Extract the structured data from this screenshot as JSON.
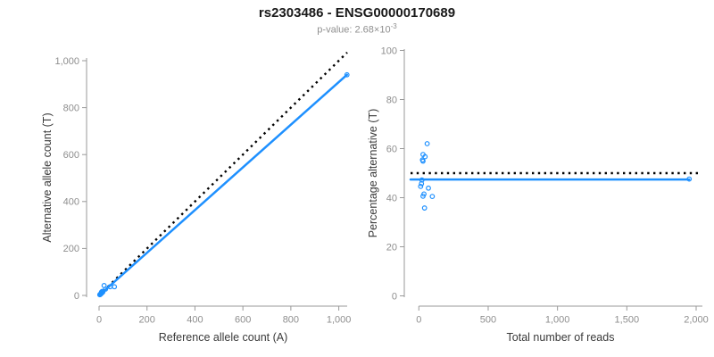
{
  "header": {
    "title": "rs2303486 - ENSG00000170689",
    "p_value_text": "p-value: 2.68×10",
    "p_value_exponent": "-3"
  },
  "colors": {
    "accent_blue": "#1E90FF",
    "reference_line": "#000000",
    "axis": "#999999",
    "tick_label": "#8e8e8e",
    "axis_title": "#3a3a3a",
    "title": "#1a1a1a",
    "subtitle": "#8f8f8f",
    "background": "#ffffff"
  },
  "chart_data": [
    {
      "type": "scatter",
      "title": "",
      "xlabel": "Reference allele count (A)",
      "ylabel": "Alternative allele count (T)",
      "xlim": [
        0,
        1035
      ],
      "ylim": [
        0,
        1040
      ],
      "xticks": [
        0,
        200,
        400,
        600,
        800,
        1000
      ],
      "xtick_labels": [
        "0",
        "200",
        "400",
        "600",
        "800",
        "1,000"
      ],
      "yticks": [
        0,
        200,
        400,
        600,
        800,
        1000
      ],
      "ytick_labels": [
        "0",
        "200",
        "400",
        "600",
        "800",
        "1,000"
      ],
      "grid": false,
      "points": [
        [
          3,
          3
        ],
        [
          5,
          4
        ],
        [
          6,
          6
        ],
        [
          8,
          7
        ],
        [
          10,
          9
        ],
        [
          12,
          11
        ],
        [
          14,
          13
        ],
        [
          16,
          15
        ],
        [
          10,
          14
        ],
        [
          13,
          17
        ],
        [
          21,
          42
        ],
        [
          27,
          27
        ],
        [
          46,
          37
        ],
        [
          64,
          37
        ],
        [
          1034,
          940
        ]
      ],
      "ref_line": {
        "style": "dotted",
        "from": [
          0,
          0
        ],
        "to": [
          1035,
          1035
        ],
        "meaning": "identity y=x"
      },
      "fit_line": {
        "style": "solid",
        "from": [
          0,
          0
        ],
        "to": [
          1034,
          940
        ],
        "meaning": "fitted allelic ratio"
      }
    },
    {
      "type": "scatter",
      "title": "",
      "xlabel": "Total number of reads",
      "ylabel": "Percentage alternative (T)",
      "xlim": [
        0,
        2040
      ],
      "ylim": [
        0,
        100
      ],
      "xticks": [
        0,
        500,
        1000,
        1500,
        2000
      ],
      "xtick_labels": [
        "0",
        "500",
        "1,000",
        "1,500",
        "2,000"
      ],
      "yticks": [
        0,
        20,
        40,
        60,
        80,
        100
      ],
      "ytick_labels": [
        "0",
        "20",
        "40",
        "60",
        "80",
        "100"
      ],
      "grid": false,
      "points": [
        [
          60,
          62
        ],
        [
          30,
          57.6
        ],
        [
          45,
          56.7
        ],
        [
          26,
          55.4
        ],
        [
          30,
          54.9
        ],
        [
          22,
          47.2
        ],
        [
          19,
          45.7
        ],
        [
          13,
          44.6
        ],
        [
          69,
          43.9
        ],
        [
          37,
          41.5
        ],
        [
          30,
          40.6
        ],
        [
          97,
          40.5
        ],
        [
          41,
          35.8
        ],
        [
          1950,
          47.6
        ]
      ],
      "ref_line": {
        "style": "dotted",
        "y": 50,
        "x_end": 2030,
        "meaning": "expected 50%"
      },
      "fit_line": {
        "style": "solid",
        "y": 47.4,
        "x_end": 1950,
        "meaning": "fitted percentage"
      }
    }
  ]
}
